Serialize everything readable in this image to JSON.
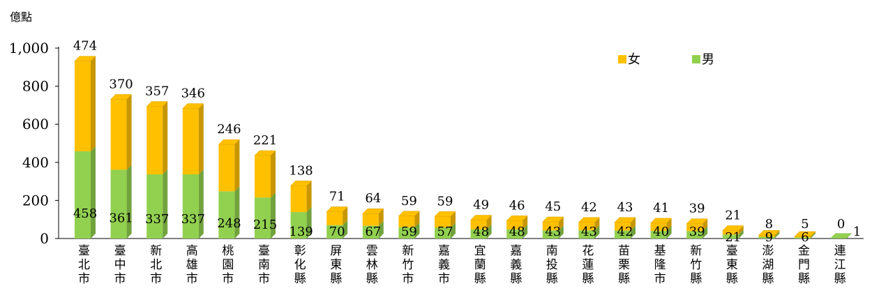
{
  "chart_data": {
    "type": "bar",
    "stacked": true,
    "ylabel": "億點",
    "ylim": [
      0,
      1000
    ],
    "yticks": [
      "0",
      "200",
      "400",
      "600",
      "800",
      "1,000"
    ],
    "legend": {
      "position": "top-right"
    },
    "categories": [
      "臺北市",
      "臺中市",
      "新北市",
      "高雄市",
      "桃園市",
      "臺南市",
      "彰化縣",
      "屏東縣",
      "雲林縣",
      "新竹市",
      "嘉義市",
      "宜蘭縣",
      "嘉義縣",
      "南投縣",
      "花蓮縣",
      "苗栗縣",
      "基隆市",
      "新竹縣",
      "臺東縣",
      "澎湖縣",
      "金門縣",
      "連江縣"
    ],
    "series": [
      {
        "name": "男",
        "color": "#92d050",
        "values": [
          458,
          361,
          337,
          337,
          248,
          215,
          139,
          70,
          67,
          59,
          57,
          48,
          48,
          43,
          43,
          42,
          40,
          39,
          21,
          9,
          6,
          1
        ]
      },
      {
        "name": "女",
        "color": "#ffc000",
        "values": [
          474,
          370,
          357,
          346,
          246,
          221,
          138,
          71,
          64,
          59,
          59,
          49,
          46,
          45,
          42,
          43,
          41,
          39,
          21,
          8,
          5,
          0
        ]
      }
    ]
  }
}
